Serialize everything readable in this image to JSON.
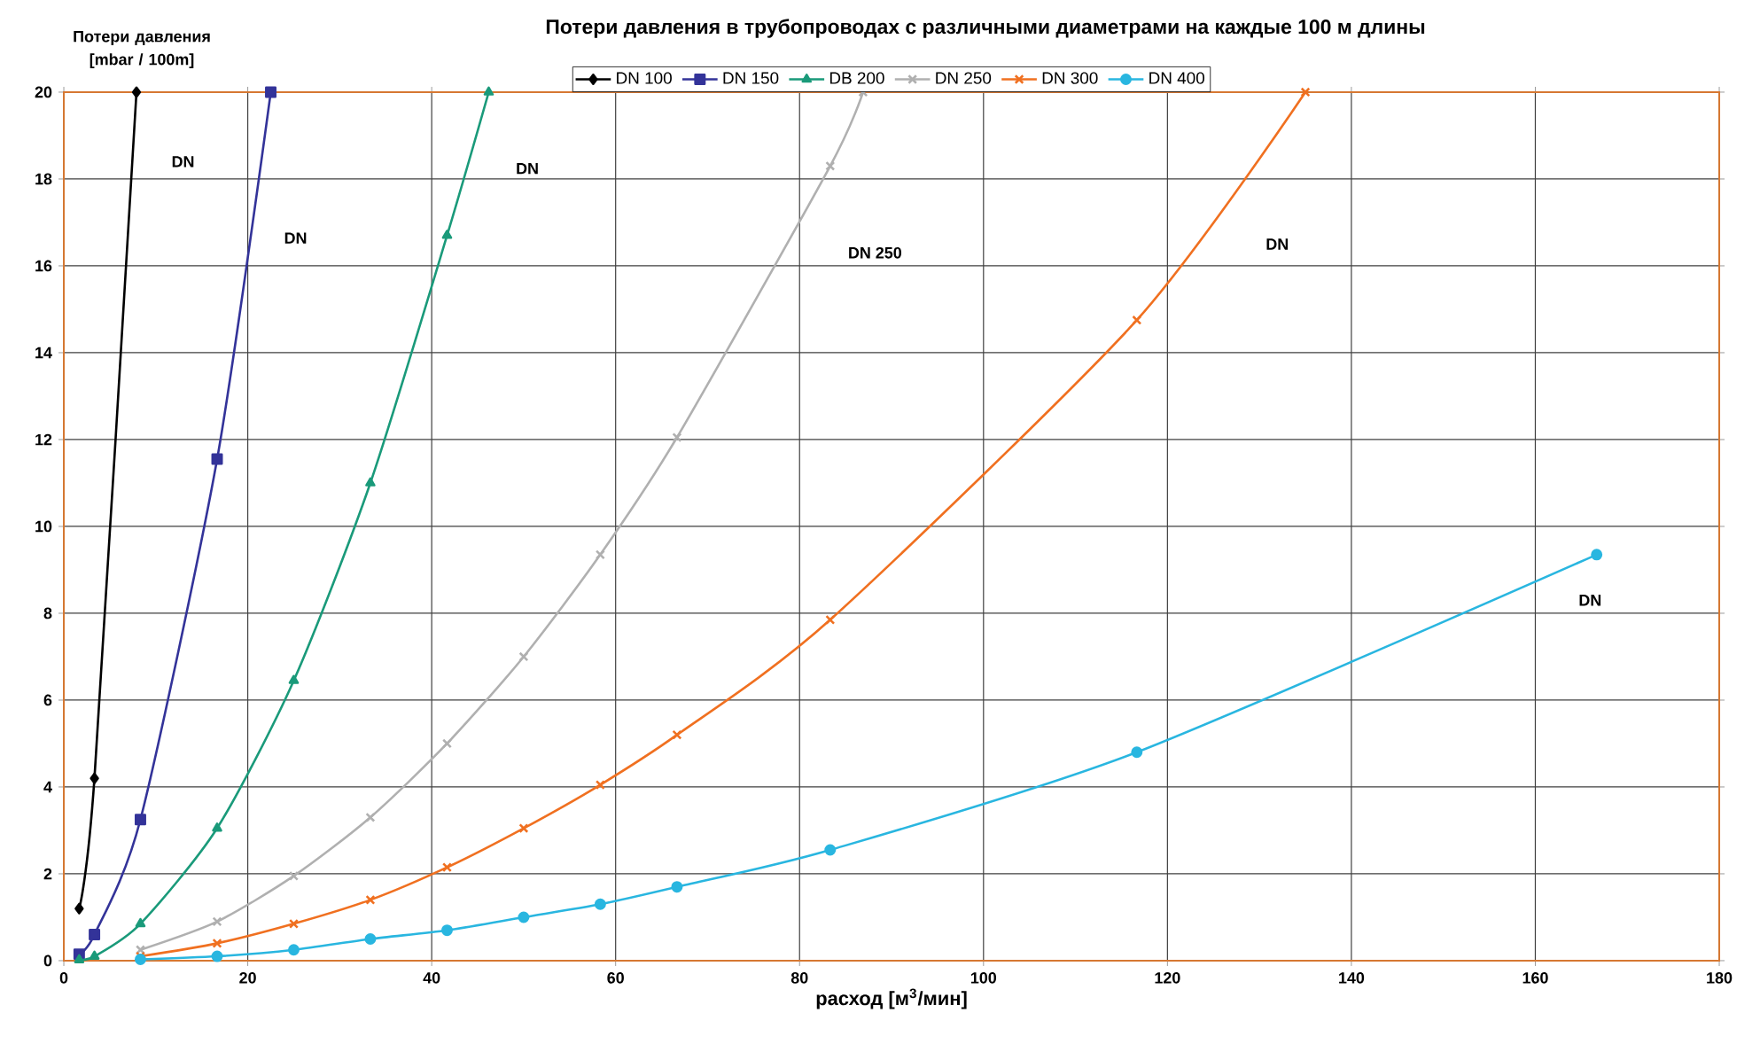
{
  "chart_data": {
    "type": "line",
    "title": "Потери давления в трубопроводах с различными диаметрами на каждые 100 м длины",
    "xlabel": "расход [м$^{3}$/мин]",
    "ylabel": "Потери давления [mbar / 100m]",
    "xlim": [
      0,
      180
    ],
    "ylim": [
      0,
      20
    ],
    "xticks": [
      0,
      20,
      40,
      60,
      80,
      100,
      120,
      140,
      160,
      180
    ],
    "yticks": [
      0,
      2,
      4,
      6,
      8,
      10,
      12,
      14,
      16,
      18,
      20
    ],
    "grid": true,
    "legend": "top",
    "line_style": "solid",
    "series": [
      {
        "name": "DN 100",
        "color": "#000000",
        "marker": "diamond",
        "x": [
          1.67,
          3.33,
          7.9
        ],
        "values": [
          1.2,
          4.2,
          20
        ]
      },
      {
        "name": "DN 150",
        "color": "#333399",
        "marker": "square",
        "x": [
          1.67,
          3.33,
          8.33,
          16.67,
          22.5
        ],
        "values": [
          0.15,
          0.6,
          3.25,
          11.55,
          20
        ]
      },
      {
        "name": "DB 200",
        "color": "#1a9a7a",
        "marker": "triangle",
        "x": [
          1.67,
          3.33,
          8.33,
          16.67,
          25,
          33.33,
          41.67,
          46.2
        ],
        "values": [
          0.02,
          0.1,
          0.85,
          3.05,
          6.45,
          11,
          16.7,
          20
        ]
      },
      {
        "name": "DN 250",
        "color": "#b0b0b0",
        "marker": "cross",
        "x": [
          8.33,
          16.67,
          25,
          33.33,
          41.67,
          50,
          58.33,
          66.67,
          83.33,
          86.9
        ],
        "values": [
          0.25,
          0.9,
          1.95,
          3.3,
          5,
          7,
          9.35,
          12.05,
          18.3,
          20
        ]
      },
      {
        "name": "DN 300",
        "color": "#f07020",
        "marker": "cross",
        "x": [
          8.33,
          16.67,
          25,
          33.33,
          41.67,
          50,
          58.33,
          66.67,
          83.33,
          116.67,
          135
        ],
        "values": [
          0.1,
          0.4,
          0.85,
          1.4,
          2.15,
          3.05,
          4.05,
          5.2,
          7.85,
          14.75,
          20
        ]
      },
      {
        "name": "DN 400",
        "color": "#29b6e0",
        "marker": "circle",
        "x": [
          8.33,
          16.67,
          25,
          33.33,
          41.67,
          50,
          58.33,
          66.67,
          83.33,
          116.67,
          166.67
        ],
        "values": [
          0.03,
          0.1,
          0.25,
          0.5,
          0.7,
          1.0,
          1.3,
          1.7,
          2.55,
          4.8,
          9.35
        ]
      }
    ],
    "annotations": [
      "DN",
      "DN",
      "DN",
      "DN 250",
      "DN",
      "DN"
    ]
  }
}
